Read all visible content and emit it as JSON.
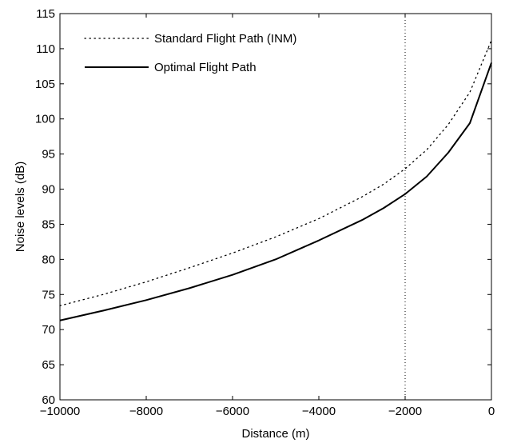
{
  "chart_data": {
    "type": "line",
    "xlabel": "Distance (m)",
    "ylabel": "Noise levels (dB)",
    "xlim": [
      -10000,
      0
    ],
    "ylim": [
      60,
      115
    ],
    "xticks": [
      -10000,
      -8000,
      -6000,
      -4000,
      -2000,
      0
    ],
    "xtick_labels": [
      "−10000",
      "−8000",
      "−6000",
      "−4000",
      "−2000",
      "0"
    ],
    "yticks": [
      60,
      65,
      70,
      75,
      80,
      85,
      90,
      95,
      100,
      105,
      110,
      115
    ],
    "ytick_labels": [
      "60",
      "65",
      "70",
      "75",
      "80",
      "85",
      "90",
      "95",
      "100",
      "105",
      "110",
      "115"
    ],
    "grid": false,
    "legend_position": "top-left",
    "reference_line": {
      "orientation": "vertical",
      "x": -2000,
      "style": "dotted"
    },
    "series": [
      {
        "name": "Standard Flight Path (INM)",
        "style": "dotted",
        "color": "#000000",
        "x": [
          -10000,
          -9000,
          -8000,
          -7000,
          -6000,
          -5000,
          -4000,
          -3000,
          -2500,
          -2000,
          -1500,
          -1000,
          -500,
          0
        ],
        "y": [
          73.4,
          75.0,
          76.8,
          78.8,
          80.9,
          83.2,
          85.8,
          88.9,
          90.7,
          92.9,
          95.6,
          99.2,
          103.8,
          111.2
        ]
      },
      {
        "name": "Optimal Flight Path",
        "style": "solid",
        "color": "#000000",
        "x": [
          -10000,
          -9000,
          -8000,
          -7000,
          -6000,
          -5000,
          -4000,
          -3000,
          -2500,
          -2000,
          -1500,
          -1000,
          -500,
          0
        ],
        "y": [
          71.3,
          72.7,
          74.2,
          75.9,
          77.8,
          80.0,
          82.7,
          85.6,
          87.3,
          89.3,
          91.8,
          95.2,
          99.4,
          108.0
        ]
      }
    ]
  }
}
